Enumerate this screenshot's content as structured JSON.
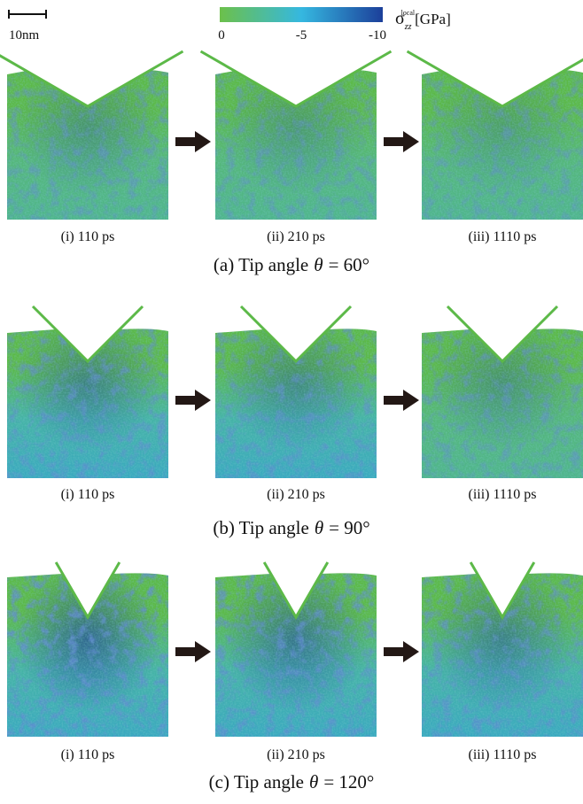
{
  "scale_bar": {
    "label": "10nm"
  },
  "colorbar": {
    "ticks": [
      "0",
      "-5",
      "-10"
    ],
    "label": {
      "symbol": "σ",
      "subscript": "zz",
      "superscript": "local",
      "unit": "[GPa]"
    }
  },
  "rows": [
    {
      "caption": {
        "prefix": "(a) Tip angle",
        "symbol": "θ",
        "suffix": "= 60°"
      },
      "panels": [
        "(i) 110 ps",
        "(ii) 210 ps",
        "(iii) 1110 ps"
      ]
    },
    {
      "caption": {
        "prefix": "(b) Tip angle",
        "symbol": "θ",
        "suffix": "= 90°"
      },
      "panels": [
        "(i) 110 ps",
        "(ii) 210 ps",
        "(iii) 1110 ps"
      ]
    },
    {
      "caption": {
        "prefix": "(c) Tip angle",
        "symbol": "θ",
        "suffix": "= 120°"
      },
      "panels": [
        "(i) 110 ps",
        "(ii) 210 ps",
        "(iii) 1110 ps"
      ]
    }
  ]
}
